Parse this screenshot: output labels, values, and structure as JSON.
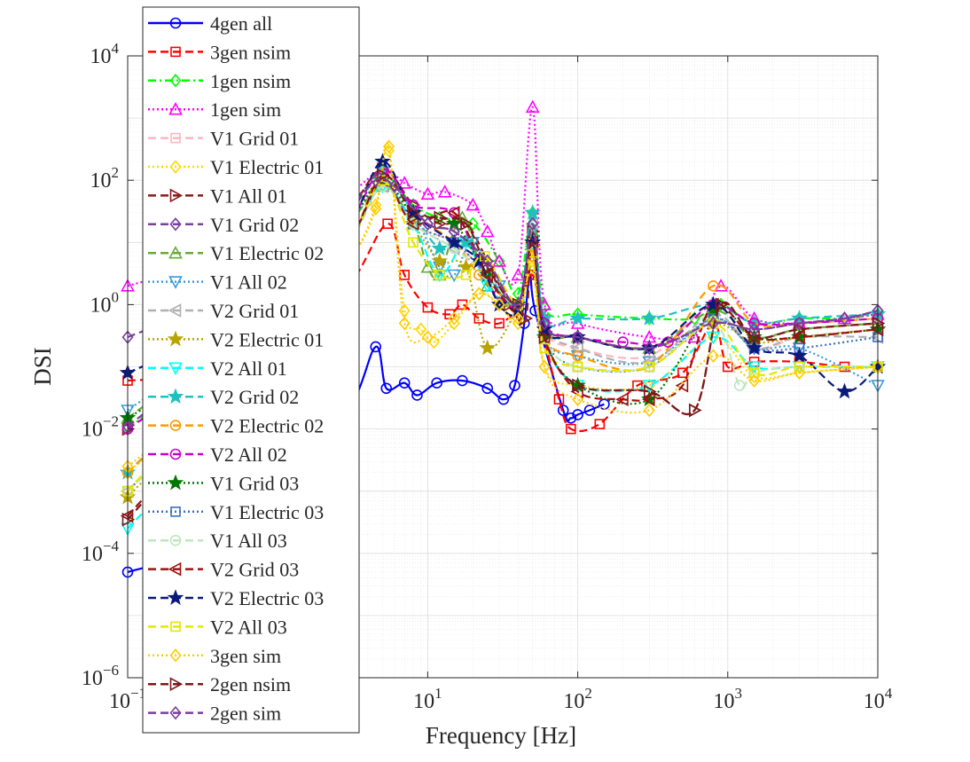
{
  "chart_data": {
    "type": "line",
    "title": "",
    "xlabel": "Frequency [Hz]",
    "ylabel": "DSI",
    "xscale": "log",
    "yscale": "log",
    "xlim": [
      0.1,
      10000
    ],
    "ylim": [
      1e-06,
      10000
    ],
    "grid": true,
    "minor_grid": true,
    "legend_position": "top-left, overlapping the axes",
    "x_ticks": [
      {
        "value": 0.1,
        "base": "10",
        "exp": "−1"
      },
      {
        "value": 10,
        "base": "10",
        "exp": "1"
      },
      {
        "value": 100,
        "base": "10",
        "exp": "2"
      },
      {
        "value": 1000,
        "base": "10",
        "exp": "3"
      },
      {
        "value": 10000,
        "base": "10",
        "exp": "4"
      }
    ],
    "y_ticks": [
      {
        "value": 1e-06,
        "base": "10",
        "exp": "−6"
      },
      {
        "value": 0.0001,
        "base": "10",
        "exp": "−4"
      },
      {
        "value": 0.01,
        "base": "10",
        "exp": "−2"
      },
      {
        "value": 1,
        "base": "10",
        "exp": "0"
      },
      {
        "value": 100,
        "base": "10",
        "exp": "2"
      },
      {
        "value": 10000,
        "base": "10",
        "exp": "4"
      }
    ],
    "series": [
      {
        "name": "4gen all",
        "color": "#0000ff",
        "dash": "solid",
        "marker": "circle",
        "x": [
          0.1,
          1,
          3,
          4.5,
          5.3,
          7,
          8.5,
          11.5,
          17,
          25,
          32,
          38,
          44,
          48,
          52,
          80,
          90,
          100,
          120,
          150
        ],
        "y": [
          5e-05,
          0.0003,
          0.02,
          0.21,
          0.045,
          0.055,
          0.035,
          0.055,
          0.06,
          0.045,
          0.03,
          0.05,
          0.5,
          3,
          0.8,
          0.02,
          0.015,
          0.017,
          0.02,
          0.025
        ]
      },
      {
        "name": "3gen nsim",
        "color": "#ff0000",
        "dash": "dash",
        "marker": "square",
        "x": [
          0.1,
          1,
          3,
          5.4,
          7,
          10,
          14,
          17,
          22,
          30,
          40,
          50,
          60,
          75,
          90,
          140,
          250,
          500,
          800,
          1000,
          1500,
          3000,
          6000,
          10000
        ],
        "y": [
          0.06,
          0.1,
          2,
          20,
          3,
          0.9,
          0.7,
          1,
          0.6,
          0.5,
          0.9,
          3,
          0.3,
          0.03,
          0.01,
          0.012,
          0.05,
          0.08,
          0.5,
          0.1,
          0.12,
          0.12,
          0.1,
          0.1
        ]
      },
      {
        "name": "1gen nsim",
        "color": "#00ff00",
        "dash": "dashdot",
        "marker": "diamond",
        "x": [
          0.1,
          1,
          3,
          5,
          8,
          12,
          20,
          30,
          40,
          50,
          60,
          100,
          300,
          600,
          900,
          1500,
          3000,
          6000,
          10000
        ],
        "y": [
          0.01,
          1,
          30,
          120,
          40,
          25,
          20,
          5,
          1.5,
          30,
          0.9,
          0.7,
          0.6,
          0.6,
          1,
          0.5,
          0.6,
          0.6,
          0.7
        ]
      },
      {
        "name": "1gen sim",
        "color": "#ff00ff",
        "dash": "dot",
        "marker": "triangle-up",
        "x": [
          0.1,
          1,
          3,
          5,
          7,
          10,
          13,
          20,
          25,
          30,
          40,
          50,
          60,
          100,
          300,
          600,
          900,
          1500,
          3000,
          6000,
          10000
        ],
        "y": [
          2,
          10,
          60,
          150,
          90,
          60,
          65,
          40,
          15,
          5,
          3,
          1500,
          1,
          0.5,
          0.3,
          0.3,
          2,
          0.6,
          0.5,
          0.6,
          0.7
        ]
      },
      {
        "name": "V1 Grid 01",
        "color": "#ffb6c1",
        "dash": "dash",
        "marker": "square",
        "x": [
          0.1,
          1,
          3,
          5,
          8,
          15,
          25,
          40,
          50,
          60,
          100,
          300,
          800,
          1500,
          3000,
          10000
        ],
        "y": [
          0.001,
          0.3,
          10,
          100,
          20,
          10,
          3,
          1,
          10,
          0.4,
          0.2,
          0.15,
          1,
          0.2,
          0.3,
          0.4
        ]
      },
      {
        "name": "V1 Electric 01",
        "color": "#ffd700",
        "dash": "dot",
        "marker": "diamond",
        "x": [
          0.1,
          1,
          3,
          4.5,
          5.5,
          7,
          9,
          11,
          15,
          22,
          30,
          40,
          50,
          60,
          100,
          300,
          800,
          1500,
          3000,
          10000
        ],
        "y": [
          0.002,
          0.2,
          5,
          40,
          300,
          0.8,
          0.4,
          0.25,
          0.5,
          1.5,
          1,
          0.5,
          4,
          0.1,
          0.05,
          0.05,
          0.3,
          0.07,
          0.08,
          0.1
        ]
      },
      {
        "name": "V1 All 01",
        "color": "#8b1a1a",
        "dash": "dash",
        "marker": "triangle-right",
        "x": [
          0.1,
          1,
          3,
          5,
          8,
          12,
          18,
          25,
          35,
          45,
          50,
          60,
          100,
          300,
          600,
          900,
          1500,
          3000,
          10000
        ],
        "y": [
          0.01,
          0.5,
          30,
          150,
          40,
          20,
          20,
          5,
          1,
          0.6,
          15,
          0.3,
          0.05,
          0.04,
          0.02,
          1,
          0.3,
          0.4,
          0.5
        ]
      },
      {
        "name": "V1 Grid 02",
        "color": "#7b3f9e",
        "dash": "dash",
        "marker": "diamond",
        "x": [
          0.1,
          1,
          3,
          4.5,
          6,
          10,
          15,
          25,
          40,
          50,
          60,
          100,
          300,
          800,
          1500,
          3000,
          6000,
          10000
        ],
        "y": [
          0.3,
          3,
          40,
          100,
          80,
          20,
          15,
          5,
          1,
          20,
          0.5,
          0.3,
          0.2,
          0.5,
          0.4,
          0.5,
          0.6,
          0.8
        ]
      },
      {
        "name": "V1 Electric 02",
        "color": "#6aaa3a",
        "dash": "dash",
        "marker": "triangle-up",
        "x": [
          0.1,
          1,
          3,
          5,
          8,
          10,
          12,
          17,
          25,
          40,
          50,
          60,
          100,
          300,
          800,
          1500,
          3000,
          10000
        ],
        "y": [
          0.015,
          1,
          20,
          80,
          20,
          4,
          3,
          25,
          2,
          1,
          15,
          0.4,
          0.3,
          0.2,
          0.8,
          0.3,
          0.4,
          0.5
        ]
      },
      {
        "name": "V1 All 02",
        "color": "#3a9ad9",
        "dash": "dot",
        "marker": "triangle-down",
        "x": [
          0.1,
          1,
          3,
          5,
          8,
          12,
          15,
          20,
          30,
          40,
          50,
          60,
          100,
          300,
          800,
          1500,
          3000,
          10000
        ],
        "y": [
          0.02,
          1,
          20,
          100,
          30,
          4,
          3,
          10,
          2,
          1,
          10,
          0.3,
          0.15,
          0.12,
          0.6,
          0.2,
          0.2,
          0.05
        ]
      },
      {
        "name": "V2 Grid 01",
        "color": "#b0b0b0",
        "dash": "dash",
        "marker": "triangle-left",
        "x": [
          0.1,
          1,
          3,
          5,
          8,
          15,
          25,
          40,
          50,
          60,
          100,
          300,
          800,
          1500,
          3000,
          10000
        ],
        "y": [
          0.001,
          0.3,
          10,
          80,
          20,
          8,
          3,
          1,
          20,
          0.5,
          0.2,
          0.12,
          0.7,
          0.2,
          0.3,
          0.3
        ]
      },
      {
        "name": "V2 Electric 01",
        "color": "#b8a400",
        "dash": "dot",
        "marker": "star",
        "x": [
          0.1,
          1,
          3,
          5,
          8,
          12,
          18,
          25,
          40,
          50,
          60,
          100,
          300,
          800,
          1500,
          3000,
          10000
        ],
        "y": [
          0.0008,
          0.3,
          10,
          100,
          20,
          5,
          4,
          0.2,
          1,
          8,
          0.4,
          0.3,
          0.2,
          0.5,
          0.25,
          0.3,
          0.4
        ]
      },
      {
        "name": "V2 All 01",
        "color": "#00ffff",
        "dash": "dash",
        "marker": "triangle-down",
        "x": [
          0.1,
          1,
          3,
          5,
          8,
          12,
          18,
          25,
          40,
          50,
          60,
          100,
          300,
          800,
          1500,
          3000,
          10000
        ],
        "y": [
          0.00025,
          0.1,
          10,
          80,
          20,
          3,
          10,
          2,
          1,
          10,
          0.3,
          0.05,
          0.05,
          0.3,
          0.1,
          0.1,
          0.1
        ]
      },
      {
        "name": "V2 Grid 02",
        "color": "#20c0c0",
        "dash": "dash",
        "marker": "star",
        "x": [
          0.1,
          1,
          3,
          5,
          8,
          12,
          18,
          25,
          40,
          50,
          60,
          100,
          300,
          800,
          1500,
          3000,
          10000
        ],
        "y": [
          0.002,
          0.5,
          20,
          150,
          30,
          8,
          10,
          3,
          1,
          30,
          0.6,
          0.6,
          0.6,
          1,
          0.5,
          0.6,
          0.7
        ]
      },
      {
        "name": "V2 Electric 02",
        "color": "#ff9900",
        "dash": "dash",
        "marker": "circle",
        "x": [
          0.1,
          1,
          3,
          5,
          8,
          15,
          22,
          30,
          40,
          50,
          60,
          100,
          300,
          800,
          1500,
          3000,
          10000
        ],
        "y": [
          0.002,
          0.4,
          10,
          150,
          30,
          10,
          3,
          1.5,
          0.8,
          6,
          0.3,
          0.15,
          0.1,
          2,
          0.5,
          0.5,
          0.6
        ]
      },
      {
        "name": "V2 All 02",
        "color": "#cc00cc",
        "dash": "dash",
        "marker": "circle",
        "x": [
          0.1,
          1,
          3,
          5,
          8,
          15,
          22,
          30,
          40,
          50,
          60,
          100,
          200,
          400,
          800,
          1500,
          3000,
          10000
        ],
        "y": [
          0.01,
          0.5,
          20,
          150,
          40,
          30,
          5,
          1.5,
          1,
          10,
          0.5,
          0.3,
          0.25,
          0.25,
          1,
          0.5,
          0.5,
          0.6
        ]
      },
      {
        "name": "V1 Grid 03",
        "color": "#007700",
        "dash": "dot",
        "marker": "star",
        "x": [
          0.1,
          1,
          3,
          5,
          8,
          15,
          25,
          40,
          50,
          60,
          100,
          300,
          800,
          1500,
          3000,
          10000
        ],
        "y": [
          0.015,
          0.5,
          20,
          100,
          30,
          20,
          3,
          1,
          10,
          0.3,
          0.05,
          0.03,
          0.8,
          0.3,
          0.3,
          0.4
        ]
      },
      {
        "name": "V1 Electric 03",
        "color": "#3a6ec0",
        "dash": "dot",
        "marker": "square",
        "x": [
          0.1,
          1,
          3,
          5,
          8,
          15,
          25,
          40,
          50,
          60,
          100,
          300,
          800,
          1500,
          3000,
          10000
        ],
        "y": [
          0.001,
          0.3,
          10,
          100,
          20,
          10,
          3,
          1,
          10,
          0.3,
          0.1,
          0.1,
          0.6,
          0.2,
          0.2,
          0.3
        ]
      },
      {
        "name": "V1 All 03",
        "color": "#bfe6bf",
        "dash": "dash",
        "marker": "circle",
        "x": [
          0.1,
          1,
          3,
          5,
          8,
          15,
          25,
          40,
          50,
          60,
          100,
          300,
          800,
          1200,
          1500,
          3000,
          10000
        ],
        "y": [
          0.001,
          0.2,
          10,
          80,
          20,
          8,
          3,
          1,
          10,
          0.3,
          0.1,
          0.1,
          0.5,
          0.05,
          0.08,
          0.1,
          0.1
        ]
      },
      {
        "name": "V2 Grid 03",
        "color": "#a01010",
        "dash": "dash",
        "marker": "triangle-left",
        "x": [
          0.1,
          1,
          3,
          5,
          8,
          15,
          25,
          40,
          50,
          60,
          100,
          200,
          300,
          500,
          800,
          1500,
          3000,
          10000
        ],
        "y": [
          0.0004,
          0.2,
          10,
          100,
          20,
          30,
          3,
          0.8,
          10,
          0.3,
          0.04,
          0.03,
          0.03,
          0.05,
          1,
          0.3,
          0.3,
          0.4
        ]
      },
      {
        "name": "V2 Electric 03",
        "color": "#0a1a7a",
        "dash": "dash",
        "marker": "star",
        "x": [
          0.1,
          1,
          3,
          5,
          8,
          15,
          22,
          30,
          40,
          50,
          60,
          100,
          300,
          800,
          1500,
          3000,
          6000,
          10000
        ],
        "y": [
          0.08,
          1,
          20,
          200,
          30,
          10,
          5,
          1,
          0.8,
          10,
          0.4,
          0.3,
          0.2,
          1,
          0.2,
          0.15,
          0.04,
          0.1
        ]
      },
      {
        "name": "V2 All 03",
        "color": "#e6e600",
        "dash": "dash",
        "marker": "square",
        "x": [
          0.1,
          1,
          3,
          5,
          8,
          12,
          18,
          24,
          40,
          50,
          60,
          100,
          300,
          800,
          1500,
          3000,
          10000
        ],
        "y": [
          0.001,
          0.5,
          10,
          100,
          10,
          3,
          3,
          6,
          1,
          5,
          0.2,
          0.1,
          0.1,
          0.5,
          0.08,
          0.1,
          0.1
        ]
      },
      {
        "name": "3gen sim",
        "color": "#ffcc00",
        "dash": "dot",
        "marker": "diamond",
        "x": [
          0.1,
          1,
          3,
          4.5,
          5.5,
          7,
          10,
          15,
          22,
          30,
          40,
          50,
          60,
          100,
          300,
          800,
          1500,
          3000,
          10000
        ],
        "y": [
          0.0025,
          0.2,
          5,
          35,
          350,
          0.5,
          0.3,
          0.6,
          1.5,
          1,
          0.6,
          8,
          0.1,
          0.03,
          0.02,
          0.15,
          0.06,
          0.08,
          0.1
        ]
      },
      {
        "name": "2gen nsim",
        "color": "#7a1a1a",
        "dash": "dash",
        "marker": "triangle-right",
        "x": [
          0.1,
          1,
          3,
          5,
          8,
          12,
          18,
          25,
          40,
          50,
          60,
          100,
          300,
          600,
          900,
          1500,
          3000,
          10000
        ],
        "y": [
          0.00035,
          0.2,
          10,
          120,
          30,
          25,
          20,
          4,
          1,
          10,
          0.3,
          0.05,
          0.04,
          0.02,
          1,
          0.3,
          0.4,
          0.5
        ]
      },
      {
        "name": "2gen sim",
        "color": "#7b3f9e",
        "dash": "dash",
        "marker": "diamond",
        "x": [
          0.1,
          1,
          3,
          4.5,
          6,
          10,
          15,
          25,
          40,
          50,
          60,
          100,
          300,
          800,
          1500,
          3000,
          6000,
          10000
        ],
        "y": [
          0.011,
          1,
          30,
          100,
          80,
          20,
          15,
          5,
          1,
          20,
          0.5,
          0.3,
          0.2,
          0.5,
          0.4,
          0.5,
          0.6,
          0.8
        ]
      }
    ]
  }
}
